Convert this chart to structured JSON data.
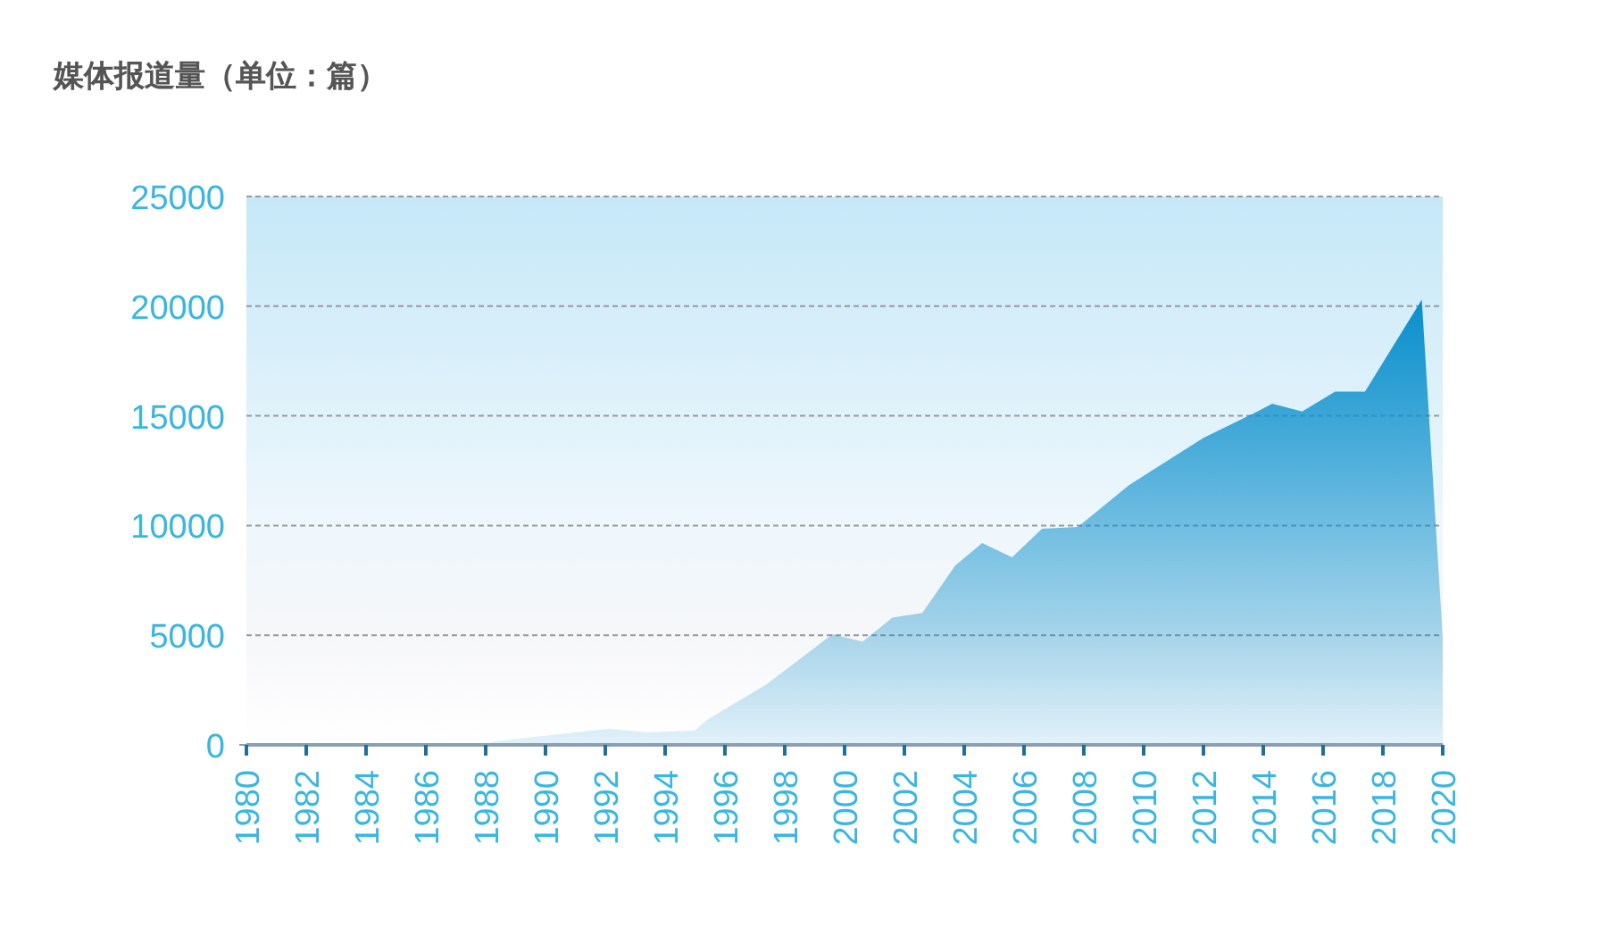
{
  "chart_data": {
    "type": "area",
    "title": "媒体报道量（单位：篇）",
    "x": [
      1980,
      1988,
      1988.3,
      1992.1,
      1993.4,
      1995.0,
      1995.4,
      1997.4,
      1999.6,
      2000.6,
      2001.6,
      2002.6,
      2003.7,
      2004.6,
      2005.6,
      2006.6,
      2007.8,
      2009.5,
      2012,
      2013.8,
      2014.3,
      2015.3,
      2016.4,
      2017.4,
      2019.3,
      2020
    ],
    "values": [
      0,
      0,
      160,
      730,
      570,
      650,
      1140,
      2770,
      5050,
      4700,
      5800,
      6020,
      8170,
      9200,
      8550,
      9850,
      9930,
      11830,
      14000,
      15200,
      15550,
      15200,
      16100,
      16100,
      20300,
      4900
    ],
    "color": "#0a8fcc",
    "xlim": [
      1980,
      2020
    ],
    "xticks": [
      1980,
      1982,
      1984,
      1986,
      1988,
      1990,
      1992,
      1994,
      1996,
      1998,
      2000,
      2002,
      2004,
      2006,
      2008,
      2010,
      2012,
      2014,
      2016,
      2018,
      2020
    ],
    "ylim": [
      0,
      25000
    ],
    "yticks": [
      0,
      5000,
      10000,
      15000,
      20000,
      25000
    ],
    "grid": "y"
  }
}
